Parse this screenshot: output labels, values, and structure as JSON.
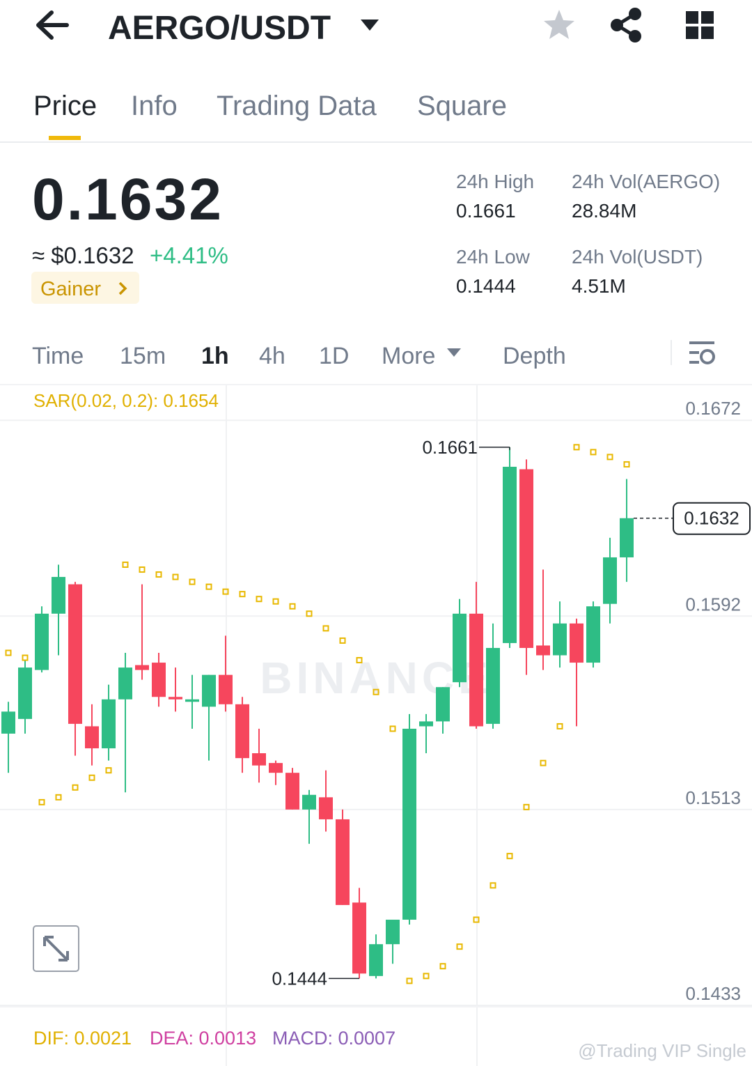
{
  "header": {
    "pair": "AERGO/USDT"
  },
  "tabs": [
    "Price",
    "Info",
    "Trading Data",
    "Square"
  ],
  "price": {
    "last": "0.1632",
    "usd": "≈ $0.1632",
    "change": "+4.41%",
    "badge": "Gainer"
  },
  "stats": [
    {
      "label": "24h High",
      "value": "0.1661"
    },
    {
      "label": "24h Vol(AERGO)",
      "value": "28.84M"
    },
    {
      "label": "24h Low",
      "value": "0.1444"
    },
    {
      "label": "24h Vol(USDT)",
      "value": "4.51M"
    }
  ],
  "intervals": [
    "Time",
    "15m",
    "1h",
    "4h",
    "1D",
    "More",
    "Depth"
  ],
  "chart_data": {
    "type": "candlestick",
    "indicator_label": "SAR(0.02, 0.2): 0.1654",
    "watermark": "BINANCE",
    "ylim": [
      0.1433,
      0.1686
    ],
    "yticks": [
      0.1672,
      0.1592,
      0.1513,
      0.1433
    ],
    "up_color": "#2ebd85",
    "down_color": "#f6465d",
    "sar_color": "#e8b800",
    "open": [
      0.1544,
      0.155,
      0.157,
      0.1593,
      0.1605,
      0.1547,
      0.1538,
      0.1558,
      0.1572,
      0.1573,
      0.1559,
      0.1557,
      0.1555,
      0.1568,
      0.1556,
      0.1536,
      0.1532,
      0.1528,
      0.1513,
      0.1518,
      0.1509,
      0.1475,
      0.1445,
      0.1458,
      0.1468,
      0.1547,
      0.1549,
      0.1565,
      0.1593,
      0.1548,
      0.1581,
      0.1652,
      0.158,
      0.1576,
      0.1589,
      0.1573,
      0.1597,
      0.1616
    ],
    "high": [
      0.1557,
      0.1574,
      0.1596,
      0.1613,
      0.1606,
      0.1556,
      0.1564,
      0.1577,
      0.1605,
      0.1577,
      0.1571,
      0.1568,
      0.1568,
      0.1584,
      0.1559,
      0.1546,
      0.1533,
      0.153,
      0.1521,
      0.1529,
      0.1513,
      0.1481,
      0.1462,
      0.1468,
      0.1552,
      0.1552,
      0.1563,
      0.1599,
      0.1606,
      0.1589,
      0.1661,
      0.1656,
      0.1611,
      0.1598,
      0.1591,
      0.1598,
      0.1624,
      0.1648
    ],
    "low": [
      0.1528,
      0.1544,
      0.1569,
      0.1576,
      0.1535,
      0.1531,
      0.1533,
      0.152,
      0.1566,
      0.1555,
      0.1553,
      0.1546,
      0.1533,
      0.1553,
      0.1528,
      0.1524,
      0.1523,
      0.1513,
      0.1499,
      0.1504,
      0.1474,
      0.1444,
      0.1444,
      0.145,
      0.1466,
      0.1536,
      0.1544,
      0.1563,
      0.1546,
      0.1546,
      0.1579,
      0.1568,
      0.157,
      0.1571,
      0.1547,
      0.1571,
      0.1589,
      0.1606
    ],
    "close": [
      0.1553,
      0.1571,
      0.1593,
      0.1608,
      0.1548,
      0.1538,
      0.1558,
      0.1571,
      0.157,
      0.1559,
      0.1558,
      0.1558,
      0.1568,
      0.1556,
      0.1534,
      0.1531,
      0.1528,
      0.1513,
      0.1519,
      0.1509,
      0.1474,
      0.1446,
      0.1458,
      0.1468,
      0.1546,
      0.1549,
      0.1563,
      0.1593,
      0.1547,
      0.1579,
      0.1653,
      0.1579,
      0.1576,
      0.1589,
      0.1573,
      0.1596,
      0.1616,
      0.1632
    ],
    "sar": [
      0.1577,
      0.1575,
      0.1516,
      0.1518,
      0.1522,
      0.1526,
      0.1529,
      0.1613,
      0.1611,
      0.1609,
      0.1608,
      0.1606,
      0.1604,
      0.1602,
      0.1601,
      0.1599,
      0.1598,
      0.1596,
      0.1593,
      0.1587,
      0.1582,
      0.1574,
      0.1561,
      0.1546,
      0.1443,
      0.1445,
      0.1449,
      0.1457,
      0.1468,
      0.1482,
      0.1494,
      0.1514,
      0.1532,
      0.1547,
      0.1661,
      0.1659,
      0.1657,
      0.1654
    ],
    "annotations": {
      "high": 0.1661,
      "low": 0.1444,
      "last": 0.1632
    }
  },
  "macd": [
    "DIF: 0.0021",
    "DEA: 0.0013",
    "MACD: 0.0007"
  ],
  "credit": "@Trading VIP Single"
}
